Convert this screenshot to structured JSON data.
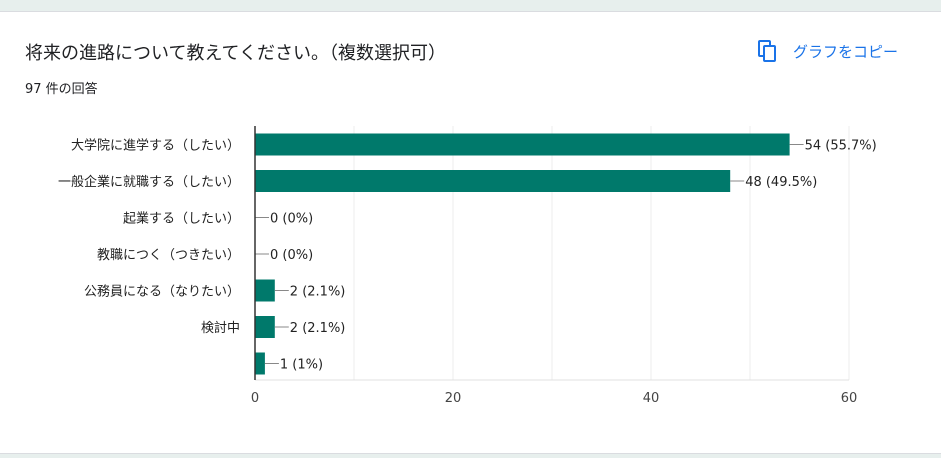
{
  "header": {
    "title": "将来の進路について教えてください。（複数選択可）",
    "response_count": "97 件の回答",
    "copy_label": "グラフをコピー",
    "copy_icon": "copy-icon"
  },
  "colors": {
    "bar": "#00796b",
    "grid": "#eeeeee",
    "axis": "#333333",
    "link": "#1a73e8"
  },
  "chart_data": {
    "type": "bar",
    "orientation": "horizontal",
    "categories": [
      "大学院に進学する（したい）",
      "一般企業に就職する（したい）",
      "起業する（したい）",
      "教職につく（つきたい）",
      "公務員になる（なりたい）",
      "検討中",
      ""
    ],
    "values": [
      54,
      48,
      0,
      0,
      2,
      2,
      1
    ],
    "data_labels": [
      "54 (55.7%)",
      "48 (49.5%)",
      "0 (0%)",
      "0 (0%)",
      "2 (2.1%)",
      "2 (2.1%)",
      "1 (1%)"
    ],
    "xlim": [
      0,
      60
    ],
    "x_ticks": [
      0,
      20,
      40,
      60
    ],
    "grid": true,
    "legend": "none"
  }
}
